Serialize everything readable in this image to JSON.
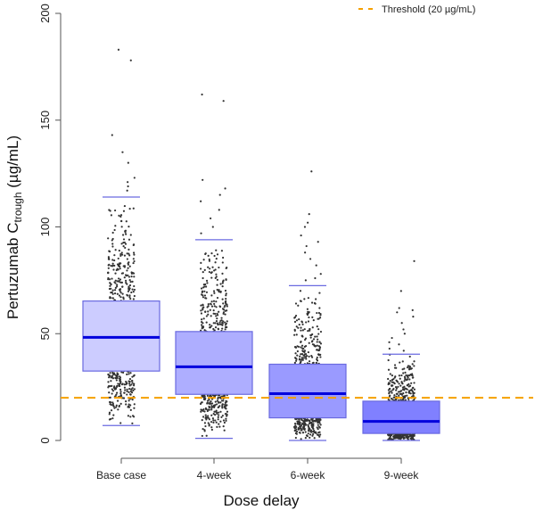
{
  "chart_data": {
    "type": "box",
    "xlabel": "Dose delay",
    "ylabel_main": "Pertuzumab C",
    "ylabel_sub": "trough",
    "ylabel_unit": " (µg/mL)",
    "ylim": [
      0,
      200
    ],
    "yticks": [
      0,
      50,
      100,
      150,
      200
    ],
    "categories": [
      "Base case",
      "4-week",
      "6-week",
      "9-week"
    ],
    "boxes": [
      {
        "name": "Base case",
        "whisker_low": 7,
        "q1": 32.5,
        "median": 48.3,
        "q3": 65.3,
        "whisker_high": 114,
        "fill": "#ccccff",
        "outliers": [
          183,
          178,
          143,
          135,
          130,
          123,
          121,
          119,
          117
        ]
      },
      {
        "name": "4-week",
        "whisker_low": 1,
        "q1": 21.6,
        "median": 34.5,
        "q3": 51,
        "whisker_high": 94,
        "fill": "#aeaeff",
        "outliers": [
          162,
          159,
          122,
          118,
          115,
          112,
          108,
          104,
          100,
          97
        ]
      },
      {
        "name": "6-week",
        "whisker_low": 0,
        "q1": 10.6,
        "median": 21.9,
        "q3": 35.7,
        "whisker_high": 72.5,
        "fill": "#9a9aff",
        "outliers": [
          126,
          106,
          102,
          100,
          96,
          93,
          91,
          88,
          85,
          82,
          78,
          76,
          75
        ]
      },
      {
        "name": "9-week",
        "whisker_low": 0,
        "q1": 3.3,
        "median": 8.9,
        "q3": 18.4,
        "whisker_high": 40.4,
        "fill": "#8080ff",
        "outliers": [
          84,
          70,
          62,
          61,
          60,
          58,
          55,
          52,
          50,
          48,
          46,
          45,
          43,
          42
        ]
      }
    ],
    "threshold": {
      "value": 20,
      "label": "Threshold (20 µg/mL)",
      "color": "#f5a000"
    },
    "legend_position": "top-right",
    "grid": false,
    "colors": {
      "median": "#0000dd",
      "box_border": "#6a6ae0",
      "points": "#333333"
    }
  }
}
